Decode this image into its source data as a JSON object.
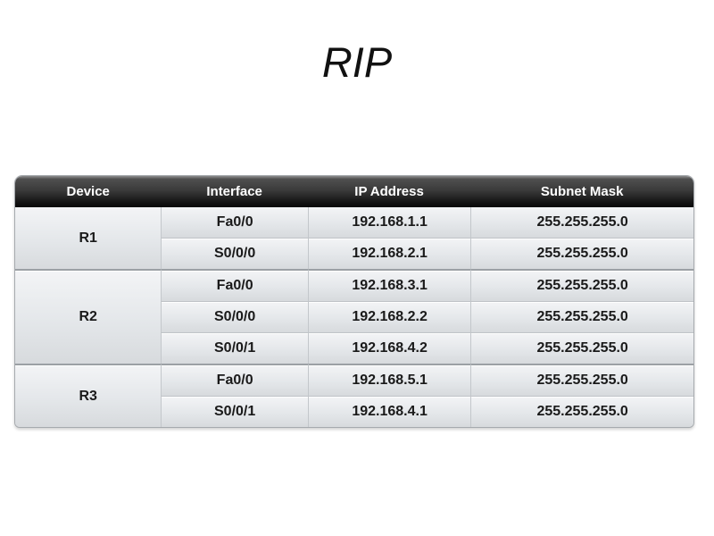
{
  "title": "RIP",
  "table": {
    "headers": [
      "Device",
      "Interface",
      "IP Address",
      "Subnet Mask"
    ],
    "groups": [
      {
        "device": "R1",
        "rows": [
          {
            "interface": "Fa0/0",
            "ip": "192.168.1.1",
            "mask": "255.255.255.0"
          },
          {
            "interface": "S0/0/0",
            "ip": "192.168.2.1",
            "mask": "255.255.255.0"
          }
        ]
      },
      {
        "device": "R2",
        "rows": [
          {
            "interface": "Fa0/0",
            "ip": "192.168.3.1",
            "mask": "255.255.255.0"
          },
          {
            "interface": "S0/0/0",
            "ip": "192.168.2.2",
            "mask": "255.255.255.0"
          },
          {
            "interface": "S0/0/1",
            "ip": "192.168.4.2",
            "mask": "255.255.255.0"
          }
        ]
      },
      {
        "device": "R3",
        "rows": [
          {
            "interface": "Fa0/0",
            "ip": "192.168.5.1",
            "mask": "255.255.255.0"
          },
          {
            "interface": "S0/0/1",
            "ip": "192.168.4.1",
            "mask": "255.255.255.0"
          }
        ]
      }
    ]
  },
  "colors": {
    "page_background": "#ffffff",
    "title_text": "#111111",
    "header_gradient_top": "#8e8e8e",
    "header_gradient_bottom": "#070707",
    "header_text": "#ffffff",
    "row_gradient_top": "#f3f4f6",
    "row_gradient_bottom": "#d7dadd",
    "body_text": "#1a1a1a",
    "outer_border": "#a6aaae",
    "group_separator": "#9ba0a5",
    "cell_divider": "#c3c7cb"
  }
}
